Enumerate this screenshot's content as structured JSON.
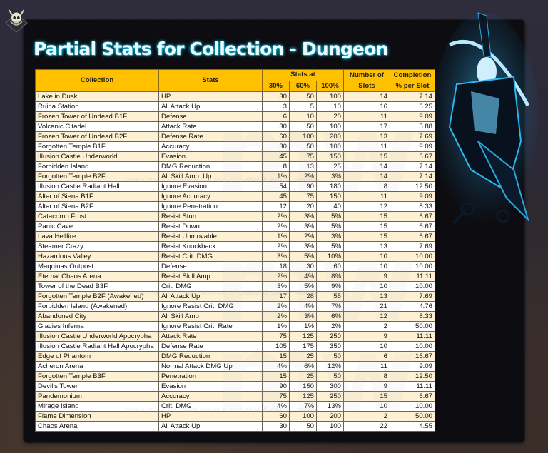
{
  "page": {
    "title": "Partial Stats for Collection - Dungeon",
    "logo_icon": "horned-skull-icon",
    "decorative_figure": "blue-glowing-reaper-figure"
  },
  "watermark": {
    "text": "mrwormy - ultimate source of cabal & cabal mobile",
    "logo": "mw"
  },
  "colors": {
    "header_bg": "#ffc000",
    "row_odd": "#fdf0d3",
    "row_even": "#ffffff",
    "title_glow": "#1ab8d8",
    "panel_bg": "#0d0c10"
  },
  "table": {
    "headers": {
      "collection": "Collection",
      "stats": "Stats",
      "stats_at": "Stats at",
      "p30": "30%",
      "p60": "60%",
      "p100": "100%",
      "slots": "Number of Slots",
      "completion": "Completion % per Slot"
    },
    "rows": [
      {
        "collection": "Lake in Dusk",
        "stat": "HP",
        "p30": "30",
        "p60": "50",
        "p100": "100",
        "slots": "14",
        "completion": "7.14"
      },
      {
        "collection": "Ruina Station",
        "stat": "All Attack Up",
        "p30": "3",
        "p60": "5",
        "p100": "10",
        "slots": "16",
        "completion": "6.25"
      },
      {
        "collection": "Frozen Tower of Undead B1F",
        "stat": "Defense",
        "p30": "6",
        "p60": "10",
        "p100": "20",
        "slots": "11",
        "completion": "9.09"
      },
      {
        "collection": "Volcanic Citadel",
        "stat": "Attack Rate",
        "p30": "30",
        "p60": "50",
        "p100": "100",
        "slots": "17",
        "completion": "5.88"
      },
      {
        "collection": "Frozen Tower of Undead B2F",
        "stat": "Defense Rate",
        "p30": "60",
        "p60": "100",
        "p100": "200",
        "slots": "13",
        "completion": "7.69"
      },
      {
        "collection": "Forgotten Temple B1F",
        "stat": "Accuracy",
        "p30": "30",
        "p60": "50",
        "p100": "100",
        "slots": "11",
        "completion": "9.09"
      },
      {
        "collection": "Illusion Castle Underworld",
        "stat": "Evasion",
        "p30": "45",
        "p60": "75",
        "p100": "150",
        "slots": "15",
        "completion": "6.67"
      },
      {
        "collection": "Forbidden Island",
        "stat": "DMG Reduction",
        "p30": "8",
        "p60": "13",
        "p100": "25",
        "slots": "14",
        "completion": "7.14"
      },
      {
        "collection": "Forgotten Temple B2F",
        "stat": "All Skill Amp. Up",
        "p30": "1%",
        "p60": "2%",
        "p100": "3%",
        "slots": "14",
        "completion": "7.14"
      },
      {
        "collection": "Illusion Castle Radiant Hall",
        "stat": "Ignore Evasion",
        "p30": "54",
        "p60": "90",
        "p100": "180",
        "slots": "8",
        "completion": "12.50"
      },
      {
        "collection": "Altar of Siena B1F",
        "stat": "Ignore Accuracy",
        "p30": "45",
        "p60": "75",
        "p100": "150",
        "slots": "11",
        "completion": "9.09"
      },
      {
        "collection": "Altar of Siena B2F",
        "stat": "Ignore Penetration",
        "p30": "12",
        "p60": "20",
        "p100": "40",
        "slots": "12",
        "completion": "8.33"
      },
      {
        "collection": "Catacomb Frost",
        "stat": "Resist Stun",
        "p30": "2%",
        "p60": "3%",
        "p100": "5%",
        "slots": "15",
        "completion": "6.67"
      },
      {
        "collection": "Panic Cave",
        "stat": "Resist Down",
        "p30": "2%",
        "p60": "3%",
        "p100": "5%",
        "slots": "15",
        "completion": "6.67"
      },
      {
        "collection": "Lava Hellfire",
        "stat": "Resist Unmovable",
        "p30": "1%",
        "p60": "2%",
        "p100": "3%",
        "slots": "15",
        "completion": "6.67"
      },
      {
        "collection": "Steamer Crazy",
        "stat": "Resist Knockback",
        "p30": "2%",
        "p60": "3%",
        "p100": "5%",
        "slots": "13",
        "completion": "7.69"
      },
      {
        "collection": "Hazardous Valley",
        "stat": "Resist Crit. DMG",
        "p30": "3%",
        "p60": "5%",
        "p100": "10%",
        "slots": "10",
        "completion": "10.00"
      },
      {
        "collection": "Maquinas Outpost",
        "stat": "Defense",
        "p30": "18",
        "p60": "30",
        "p100": "60",
        "slots": "10",
        "completion": "10.00"
      },
      {
        "collection": "Eternal Chaos Arena",
        "stat": "Resist Skill Amp",
        "p30": "2%",
        "p60": "4%",
        "p100": "8%",
        "slots": "9",
        "completion": "11.11"
      },
      {
        "collection": "Tower of the Dead B3F",
        "stat": "Crit. DMG",
        "p30": "3%",
        "p60": "5%",
        "p100": "9%",
        "slots": "10",
        "completion": "10.00"
      },
      {
        "collection": "Forgotten Temple B2F (Awakened)",
        "stat": "All Attack Up",
        "p30": "17",
        "p60": "28",
        "p100": "55",
        "slots": "13",
        "completion": "7.69"
      },
      {
        "collection": "Forbidden Island (Awakened)",
        "stat": "Ignore Resist Crit. DMG",
        "p30": "2%",
        "p60": "4%",
        "p100": "7%",
        "slots": "21",
        "completion": "4.76"
      },
      {
        "collection": "Abandoned City",
        "stat": "All Skill Amp",
        "p30": "2%",
        "p60": "3%",
        "p100": "6%",
        "slots": "12",
        "completion": "8.33"
      },
      {
        "collection": "Glacies Inferna",
        "stat": "Ignore Resist Crit. Rate",
        "p30": "1%",
        "p60": "1%",
        "p100": "2%",
        "slots": "2",
        "completion": "50.00"
      },
      {
        "collection": "Illusion Castle Underworld Apocrypha",
        "stat": "Attack Rate",
        "p30": "75",
        "p60": "125",
        "p100": "250",
        "slots": "9",
        "completion": "11.11"
      },
      {
        "collection": "Illusion Castle Radiant Hall Apocrypha",
        "stat": "Defense Rate",
        "p30": "105",
        "p60": "175",
        "p100": "350",
        "slots": "10",
        "completion": "10.00"
      },
      {
        "collection": "Edge of Phantom",
        "stat": "DMG Reduction",
        "p30": "15",
        "p60": "25",
        "p100": "50",
        "slots": "6",
        "completion": "16.67"
      },
      {
        "collection": "Acheron Arena",
        "stat": "Normal Attack DMG Up",
        "p30": "4%",
        "p60": "6%",
        "p100": "12%",
        "slots": "11",
        "completion": "9.09"
      },
      {
        "collection": "Forgotten Temple B3F",
        "stat": "Penetration",
        "p30": "15",
        "p60": "25",
        "p100": "50",
        "slots": "8",
        "completion": "12.50"
      },
      {
        "collection": "Devil's Tower",
        "stat": "Evasion",
        "p30": "90",
        "p60": "150",
        "p100": "300",
        "slots": "9",
        "completion": "11.11"
      },
      {
        "collection": "Pandemonium",
        "stat": "Accuracy",
        "p30": "75",
        "p60": "125",
        "p100": "250",
        "slots": "15",
        "completion": "6.67"
      },
      {
        "collection": "Mirage Island",
        "stat": "Crit. DMG",
        "p30": "4%",
        "p60": "7%",
        "p100": "13%",
        "slots": "10",
        "completion": "10.00"
      },
      {
        "collection": "Flame Dimension",
        "stat": "HP",
        "p30": "60",
        "p60": "100",
        "p100": "200",
        "slots": "2",
        "completion": "50.00"
      },
      {
        "collection": "Chaos Arena",
        "stat": "All Attack Up",
        "p30": "30",
        "p60": "50",
        "p100": "100",
        "slots": "22",
        "completion": "4.55"
      }
    ]
  }
}
